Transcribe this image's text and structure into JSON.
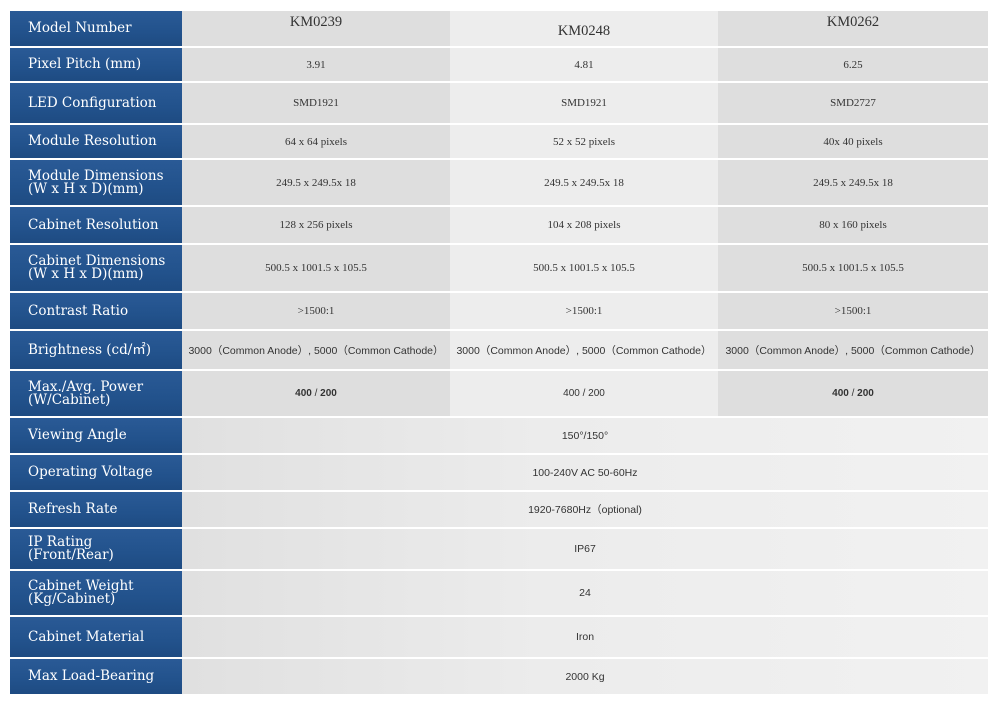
{
  "models": [
    "KM0239",
    "KM0248",
    "KM0262"
  ],
  "rows": [
    {
      "label": "Pixel Pitch (mm)",
      "values": [
        "3.91",
        "4.81",
        "6.25"
      ]
    },
    {
      "label": "LED Configuration",
      "values": [
        "SMD1921",
        "SMD1921",
        "SMD2727"
      ]
    },
    {
      "label": "Module Resolution",
      "values": [
        "64 x 64 pixels",
        "52 x 52 pixels",
        "40x 40 pixels"
      ]
    },
    {
      "label_lines": [
        "Module Dimensions",
        "(W x H x D)(mm)"
      ],
      "values": [
        "249.5 x 249.5x 18",
        "249.5 x 249.5x 18",
        "249.5 x 249.5x 18"
      ]
    },
    {
      "label": "Cabinet Resolution",
      "values": [
        "128 x 256 pixels",
        "104  x 208 pixels",
        "80 x 160 pixels"
      ]
    },
    {
      "label_lines": [
        "Cabinet Dimensions",
        "(W x H x D)(mm)"
      ],
      "values": [
        "500.5 x 1001.5 x 105.5",
        "500.5 x 1001.5 x 105.5",
        "500.5 x 1001.5 x 105.5"
      ]
    },
    {
      "label": "Contrast Ratio",
      "values": [
        ">1500:1",
        ">1500:1",
        ">1500:1"
      ]
    },
    {
      "label": "Brightness (cd/㎡)",
      "values": [
        "3000（Common Anode）, 5000（Common Cathode）",
        "3000（Common Anode）, 5000（Common Cathode）",
        "3000（Common Anode）, 5000（Common Cathode）"
      ]
    },
    {
      "label_lines": [
        "Max./Avg. Power",
        "(W/Cabinet)"
      ],
      "values": [
        {
          "max": "400",
          "sep": "/",
          "avg": "200"
        },
        {
          "max": "400",
          "sep": "/",
          "avg": "200"
        },
        {
          "max": "400",
          "sep": "/",
          "avg": "200"
        }
      ]
    }
  ],
  "shared_rows": [
    {
      "label": "Viewing Angle",
      "value": "150°/150°"
    },
    {
      "label": "Operating Voltage",
      "value": "100-240V AC  50-60Hz"
    },
    {
      "label": "Refresh Rate",
      "value": "1920-7680Hz（optional)"
    },
    {
      "label": "IP Rating (Front/Rear)",
      "value": "IP67"
    },
    {
      "label_lines": [
        "Cabinet Weight",
        "(Kg/Cabinet)"
      ],
      "value": "24"
    },
    {
      "label": "Cabinet Material",
      "value": "Iron"
    },
    {
      "label": "Max Load-Bearing",
      "value": "2000 Kg"
    }
  ],
  "header_label": "Model Number",
  "colors": {
    "label_bg": "#22528c",
    "label_text": "#ffffff",
    "value_text": "#333333"
  }
}
